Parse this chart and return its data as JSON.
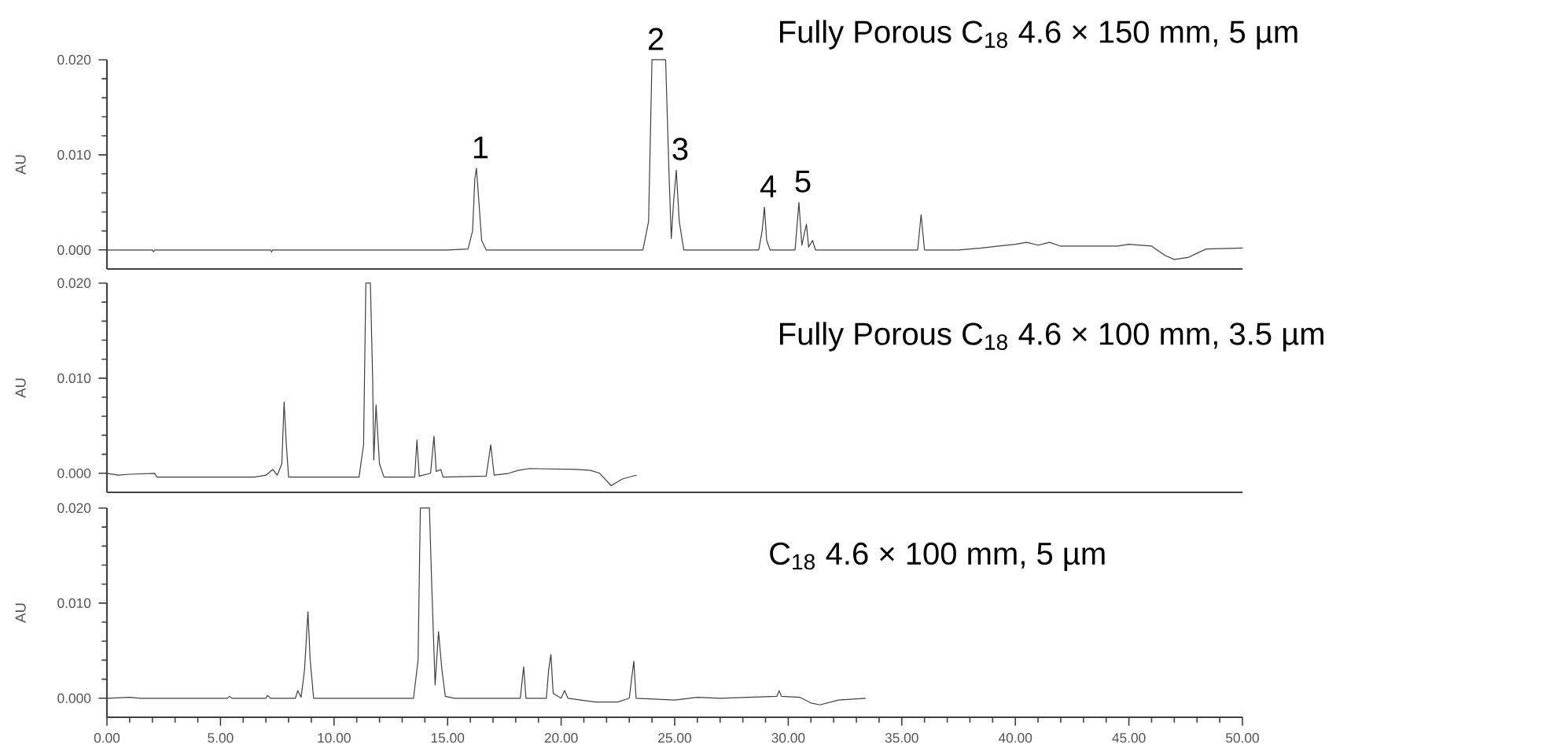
{
  "chart_data": [
    {
      "type": "line",
      "title": "Fully Porous C$_{18}$ 4.6 × 150 mm, 5 µm",
      "ylabel": "AU",
      "xlim": [
        0,
        50
      ],
      "ylim": [
        -0.002,
        0.02
      ],
      "tick_labels": "y",
      "yticks": [
        {
          "value": 0,
          "label": "0.000"
        },
        {
          "value": 0.01,
          "label": "0.010"
        },
        {
          "value": 0.02,
          "label": "0.020"
        }
      ],
      "annotations": [
        {
          "text": "1",
          "x": 16.27,
          "y": 0.0086
        },
        {
          "text": "2",
          "x": 24.0,
          "y": 0.02
        },
        {
          "text": "3",
          "x": 25.07,
          "y": 0.0084
        },
        {
          "text": "4",
          "x": 28.95,
          "y": 0.0045
        },
        {
          "text": "5",
          "x": 30.47,
          "y": 0.005
        }
      ],
      "series": [
        {
          "color": "#404040",
          "x": [
            0,
            2,
            2.05,
            2.1,
            7.2,
            7.25,
            7.3,
            15,
            15.9,
            16.1,
            16.2,
            16.27,
            16.35,
            16.5,
            16.7,
            23.6,
            23.85,
            24.0,
            24.6,
            24.75,
            24.85,
            24.95,
            25.07,
            25.2,
            25.4,
            28.7,
            28.85,
            28.95,
            29.05,
            29.2,
            30.3,
            30.47,
            30.6,
            30.8,
            30.9,
            31.07,
            31.2,
            35.7,
            35.85,
            36.0,
            37.5,
            38.5,
            40.0,
            40.5,
            41.0,
            41.5,
            42.0,
            44.5,
            45.0,
            46.0,
            46.6,
            47.0,
            47.6,
            48.4,
            50.0
          ],
          "values": [
            0,
            0,
            -0.0002,
            0,
            0,
            -0.0002,
            0,
            0,
            0.0001,
            0.002,
            0.0075,
            0.0086,
            0.006,
            0.001,
            0,
            0,
            0.003,
            0.02,
            0.02,
            0.008,
            0.0012,
            0.005,
            0.0084,
            0.003,
            0,
            0,
            0.002,
            0.0045,
            0.001,
            0,
            0,
            0.005,
            0.0005,
            0.0027,
            0.0003,
            0.001,
            0,
            0,
            0.0037,
            0,
            0,
            0.0002,
            0.0006,
            0.0008,
            0.0005,
            0.0008,
            0.0004,
            0.0004,
            0.0006,
            0.0004,
            -0.0006,
            -0.001,
            -0.0008,
            0.0001,
            0.0002
          ]
        }
      ]
    },
    {
      "type": "line",
      "title": "Fully Porous C$_{18}$ 4.6 × 100 mm, 3.5 µm",
      "ylabel": "AU",
      "xlim": [
        0,
        50
      ],
      "ylim": [
        -0.002,
        0.02
      ],
      "tick_labels": "y",
      "yticks": [
        {
          "value": 0,
          "label": "0.000"
        },
        {
          "value": 0.01,
          "label": "0.010"
        },
        {
          "value": 0.02,
          "label": "0.020"
        }
      ],
      "series": [
        {
          "color": "#404040",
          "x": [
            0,
            0.5,
            1.0,
            2.1,
            2.2,
            6.5,
            7.0,
            7.3,
            7.5,
            7.7,
            7.8,
            7.9,
            8.0,
            11.1,
            11.3,
            11.4,
            11.6,
            11.7,
            11.75,
            11.85,
            12.0,
            12.2,
            13.55,
            13.65,
            13.75,
            14.25,
            14.4,
            14.5,
            14.7,
            14.8,
            16.7,
            16.9,
            17.05,
            17.7,
            18.1,
            18.6,
            20.7,
            21.3,
            21.7,
            22.2,
            22.7,
            23.3
          ],
          "values": [
            0,
            -0.0002,
            -0.0001,
            0,
            -0.0004,
            -0.0004,
            -0.0002,
            0.0004,
            -0.0002,
            0.001,
            0.0075,
            0.003,
            -0.0004,
            -0.0004,
            0.003,
            0.02,
            0.02,
            0.01,
            0.0014,
            0.0072,
            0.001,
            -0.0004,
            -0.0004,
            0.0035,
            -0.0003,
            0,
            0.0039,
            0.0002,
            0.0004,
            -0.0004,
            -0.0003,
            0.003,
            -0.0002,
            0,
            0.0003,
            0.0005,
            0.0004,
            0.0003,
            0,
            -0.0013,
            -0.0006,
            -0.0002
          ]
        }
      ]
    },
    {
      "type": "line",
      "title": "C$_{18}$ 4.6 × 100 mm, 5 µm",
      "ylabel": "AU",
      "xlim": [
        0,
        50
      ],
      "ylim": [
        -0.002,
        0.02
      ],
      "xticks": [
        {
          "value": 0,
          "label": "0.00"
        },
        {
          "value": 5,
          "label": "5.00"
        },
        {
          "value": 10,
          "label": "10.00"
        },
        {
          "value": 15,
          "label": "15.00"
        },
        {
          "value": 20,
          "label": "20.00"
        },
        {
          "value": 25,
          "label": "25.00"
        },
        {
          "value": 30,
          "label": "30.00"
        },
        {
          "value": 35,
          "label": "35.00"
        },
        {
          "value": 40,
          "label": "40.00"
        },
        {
          "value": 45,
          "label": "45.00"
        },
        {
          "value": 50,
          "label": "50.00"
        }
      ],
      "yticks": [
        {
          "value": 0,
          "label": "0.000"
        },
        {
          "value": 0.01,
          "label": "0.010"
        },
        {
          "value": 0.02,
          "label": "0.020"
        }
      ],
      "series": [
        {
          "color": "#404040",
          "x": [
            0,
            1.0,
            1.5,
            5.3,
            5.4,
            5.5,
            7.0,
            7.07,
            7.2,
            8.3,
            8.4,
            8.55,
            8.7,
            8.85,
            8.95,
            9.1,
            13.5,
            13.7,
            13.8,
            14.2,
            14.3,
            14.45,
            14.6,
            14.75,
            14.9,
            15.3,
            18.2,
            18.35,
            18.45,
            19.35,
            19.45,
            19.55,
            19.65,
            20.0,
            20.15,
            20.3,
            21.5,
            22.5,
            23.0,
            23.1,
            23.2,
            23.3,
            25.0,
            26.0,
            27.0,
            29.5,
            29.6,
            29.7,
            30.5,
            31.0,
            31.4,
            32.2,
            33.4
          ],
          "values": [
            0,
            0.0001,
            0,
            0,
            0.0002,
            0,
            0,
            0.0003,
            0,
            0,
            0.0008,
            0.0001,
            0.003,
            0.0091,
            0.004,
            0,
            0,
            0.004,
            0.02,
            0.02,
            0.012,
            0.0014,
            0.007,
            0.003,
            0.0002,
            0,
            0,
            0.0033,
            0,
            0,
            0.003,
            0.0046,
            0.0005,
            0,
            0.0008,
            0,
            -0.0004,
            -0.0004,
            0,
            0.002,
            0.0039,
            0,
            -0.0002,
            0.0001,
            0,
            0.0002,
            0.0008,
            0.0002,
            0.0001,
            -0.0005,
            -0.0007,
            -0.0002,
            0
          ]
        }
      ]
    }
  ]
}
